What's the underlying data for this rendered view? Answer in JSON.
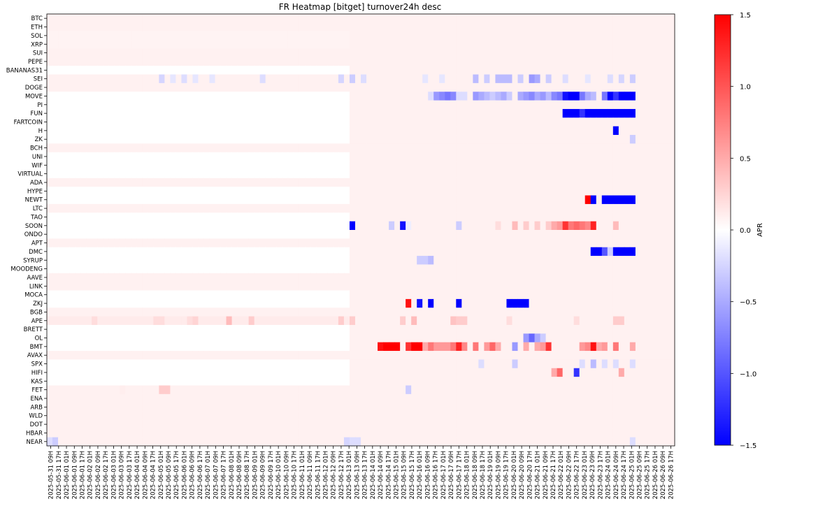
{
  "chart_data": {
    "type": "heatmap",
    "title": "FR Heatmap [bitget] turnover24h desc",
    "xlabel": "",
    "ylabel": "",
    "colorbar": {
      "label": "APR",
      "cmap": "bwr",
      "vmin": -1.5,
      "vmax": 1.5,
      "ticks": [
        1.5,
        1.0,
        0.5,
        0.0,
        -0.5,
        -1.0,
        -1.5
      ],
      "tick_labels": [
        "1.5",
        "1.0",
        "0.5",
        "0.0",
        "−0.5",
        "−1.0",
        "−1.5"
      ]
    },
    "y_categories": [
      "BTC",
      "ETH",
      "SOL",
      "XRP",
      "SUI",
      "PEPE",
      "BANANAS31",
      "SEI",
      "DOGE",
      "MOVE",
      "PI",
      "FUN",
      "FARTCOIN",
      "H",
      "ZK",
      "BCH",
      "UNI",
      "WIF",
      "VIRTUAL",
      "ADA",
      "HYPE",
      "NEWT",
      "LTC",
      "TAO",
      "SOON",
      "ONDO",
      "APT",
      "DMC",
      "SYRUP",
      "MOODENG",
      "AAVE",
      "LINK",
      "MOCA",
      "ZKJ",
      "BGB",
      "APE",
      "BRETT",
      "OL",
      "BMT",
      "AVAX",
      "SPX",
      "HIFI",
      "KAS",
      "FET",
      "ENA",
      "ARB",
      "WLD",
      "DOT",
      "HBAR",
      "NEAR"
    ],
    "x_categories": [
      "2025-05-31 09H",
      "2025-05-31 17H",
      "2025-06-01 01H",
      "2025-06-01 09H",
      "2025-06-01 17H",
      "2025-06-02 01H",
      "2025-06-02 09H",
      "2025-06-02 17H",
      "2025-06-03 01H",
      "2025-06-03 09H",
      "2025-06-03 17H",
      "2025-06-04 01H",
      "2025-06-04 09H",
      "2025-06-04 17H",
      "2025-06-05 01H",
      "2025-06-05 09H",
      "2025-06-05 17H",
      "2025-06-06 01H",
      "2025-06-06 09H",
      "2025-06-06 17H",
      "2025-06-07 01H",
      "2025-06-07 09H",
      "2025-06-07 17H",
      "2025-06-08 01H",
      "2025-06-08 09H",
      "2025-06-08 17H",
      "2025-06-09 01H",
      "2025-06-09 09H",
      "2025-06-09 17H",
      "2025-06-10 01H",
      "2025-06-10 09H",
      "2025-06-10 17H",
      "2025-06-11 01H",
      "2025-06-11 09H",
      "2025-06-11 17H",
      "2025-06-12 01H",
      "2025-06-12 09H",
      "2025-06-12 17H",
      "2025-06-13 01H",
      "2025-06-13 09H",
      "2025-06-13 17H",
      "2025-06-14 01H",
      "2025-06-14 09H",
      "2025-06-14 17H",
      "2025-06-15 01H",
      "2025-06-15 09H",
      "2025-06-15 17H",
      "2025-06-16 01H",
      "2025-06-16 09H",
      "2025-06-16 17H",
      "2025-06-17 01H",
      "2025-06-17 09H",
      "2025-06-17 17H",
      "2025-06-18 01H",
      "2025-06-18 09H",
      "2025-06-18 17H",
      "2025-06-19 01H",
      "2025-06-19 09H",
      "2025-06-19 17H",
      "2025-06-20 01H",
      "2025-06-20 09H",
      "2025-06-20 17H",
      "2025-06-21 01H",
      "2025-06-21 09H",
      "2025-06-21 17H",
      "2025-06-22 01H",
      "2025-06-22 09H",
      "2025-06-22 17H",
      "2025-06-23 01H",
      "2025-06-23 09H",
      "2025-06-23 17H",
      "2025-06-24 01H",
      "2025-06-24 09H",
      "2025-06-24 17H",
      "2025-06-25 01H",
      "2025-06-25 09H",
      "2025-06-25 17H",
      "2025-06-26 01H",
      "2025-06-26 09H",
      "2025-06-26 17H"
    ],
    "n_columns": 112,
    "base_values": {
      "BTC": 0.08,
      "ETH": 0.08,
      "SOL": 0.07,
      "XRP": 0.07,
      "SUI": 0.08,
      "PEPE": 0.08,
      "BANANAS31": 0.0,
      "SEI": 0.08,
      "DOGE": 0.08,
      "MOVE": 0.0,
      "PI": 0.0,
      "FUN": 0.0,
      "FARTCOIN": 0.0,
      "H": 0.0,
      "ZK": 0.0,
      "BCH": 0.08,
      "UNI": 0.0,
      "WIF": 0.0,
      "VIRTUAL": 0.0,
      "ADA": 0.08,
      "HYPE": 0.0,
      "NEWT": 0.0,
      "LTC": 0.08,
      "TAO": 0.0,
      "SOON": 0.0,
      "ONDO": 0.0,
      "APT": 0.08,
      "DMC": 0.0,
      "SYRUP": 0.0,
      "MOODENG": 0.0,
      "AAVE": 0.08,
      "LINK": 0.08,
      "MOCA": 0.0,
      "ZKJ": 0.0,
      "BGB": 0.08,
      "APE": 0.12,
      "BRETT": 0.0,
      "OL": 0.0,
      "BMT": 0.0,
      "AVAX": 0.08,
      "SPX": 0.0,
      "HIFI": 0.0,
      "KAS": 0.0,
      "FET": 0.08,
      "ENA": 0.08,
      "ARB": 0.08,
      "WLD": 0.08,
      "DOT": 0.08,
      "HBAR": 0.08,
      "NEAR": 0.08
    },
    "late_base_value": 0.08,
    "late_start_column": 54,
    "cells": [
      [
        "SEI",
        20,
        -0.25
      ],
      [
        "SEI",
        22,
        -0.15
      ],
      [
        "SEI",
        24,
        -0.2
      ],
      [
        "SEI",
        26,
        -0.15
      ],
      [
        "SEI",
        29,
        -0.15
      ],
      [
        "SEI",
        38,
        -0.2
      ],
      [
        "SEI",
        52,
        -0.25
      ],
      [
        "SEI",
        54,
        -0.3
      ],
      [
        "SEI",
        56,
        -0.2
      ],
      [
        "SEI",
        67,
        -0.15
      ],
      [
        "SEI",
        70,
        -0.15
      ],
      [
        "SEI",
        76,
        -0.4
      ],
      [
        "SEI",
        78,
        -0.3
      ],
      [
        "SEI",
        80,
        -0.4
      ],
      [
        "SEI",
        81,
        -0.4
      ],
      [
        "SEI",
        82,
        -0.4
      ],
      [
        "SEI",
        84,
        -0.3
      ],
      [
        "SEI",
        86,
        -0.6
      ],
      [
        "SEI",
        87,
        -0.5
      ],
      [
        "SEI",
        89,
        -0.3
      ],
      [
        "SEI",
        92,
        -0.2
      ],
      [
        "SEI",
        96,
        -0.15
      ],
      [
        "SEI",
        100,
        -0.2
      ],
      [
        "SEI",
        102,
        -0.25
      ],
      [
        "SEI",
        104,
        -0.3
      ],
      [
        "MOVE",
        68,
        -0.2
      ],
      [
        "MOVE",
        69,
        -0.6
      ],
      [
        "MOVE",
        70,
        -0.7
      ],
      [
        "MOVE",
        71,
        -0.8
      ],
      [
        "MOVE",
        72,
        -0.7
      ],
      [
        "MOVE",
        73,
        -0.2
      ],
      [
        "MOVE",
        74,
        -0.2
      ],
      [
        "MOVE",
        76,
        -0.6
      ],
      [
        "MOVE",
        77,
        -0.5
      ],
      [
        "MOVE",
        78,
        -0.4
      ],
      [
        "MOVE",
        79,
        -0.3
      ],
      [
        "MOVE",
        80,
        -0.4
      ],
      [
        "MOVE",
        81,
        -0.5
      ],
      [
        "MOVE",
        82,
        -0.3
      ],
      [
        "MOVE",
        84,
        -0.5
      ],
      [
        "MOVE",
        85,
        -0.6
      ],
      [
        "MOVE",
        86,
        -0.7
      ],
      [
        "MOVE",
        87,
        -0.5
      ],
      [
        "MOVE",
        88,
        -0.6
      ],
      [
        "MOVE",
        89,
        -0.4
      ],
      [
        "MOVE",
        90,
        -0.7
      ],
      [
        "MOVE",
        91,
        -0.8
      ],
      [
        "MOVE",
        92,
        -1.4
      ],
      [
        "MOVE",
        93,
        -1.5
      ],
      [
        "MOVE",
        94,
        -1.5
      ],
      [
        "MOVE",
        95,
        -0.8
      ],
      [
        "MOVE",
        96,
        -0.5
      ],
      [
        "MOVE",
        97,
        -0.4
      ],
      [
        "MOVE",
        99,
        -0.8
      ],
      [
        "MOVE",
        100,
        -1.5
      ],
      [
        "MOVE",
        101,
        -1.2
      ],
      [
        "MOVE",
        102,
        -1.5
      ],
      [
        "MOVE",
        103,
        -1.5
      ],
      [
        "MOVE",
        104,
        -1.5
      ],
      [
        "FUN",
        92,
        -1.5
      ],
      [
        "FUN",
        93,
        -1.5
      ],
      [
        "FUN",
        94,
        -1.5
      ],
      [
        "FUN",
        95,
        -1.2
      ],
      [
        "FUN",
        96,
        -1.5
      ],
      [
        "FUN",
        97,
        -1.5
      ],
      [
        "FUN",
        98,
        -1.5
      ],
      [
        "FUN",
        99,
        -1.5
      ],
      [
        "FUN",
        100,
        -1.5
      ],
      [
        "FUN",
        101,
        -1.5
      ],
      [
        "FUN",
        102,
        -1.5
      ],
      [
        "FUN",
        103,
        -1.5
      ],
      [
        "FUN",
        104,
        -1.5
      ],
      [
        "H",
        101,
        -1.5
      ],
      [
        "ZK",
        104,
        -0.3
      ],
      [
        "NEWT",
        96,
        1.5
      ],
      [
        "NEWT",
        97,
        -1.5
      ],
      [
        "NEWT",
        98,
        0.1
      ],
      [
        "NEWT",
        99,
        -1.5
      ],
      [
        "NEWT",
        100,
        -1.5
      ],
      [
        "NEWT",
        101,
        -1.5
      ],
      [
        "NEWT",
        102,
        -1.5
      ],
      [
        "NEWT",
        103,
        -1.5
      ],
      [
        "NEWT",
        104,
        -1.5
      ],
      [
        "SOON",
        54,
        -1.5
      ],
      [
        "SOON",
        61,
        -0.3
      ],
      [
        "SOON",
        63,
        -1.4
      ],
      [
        "SOON",
        64,
        -0.1
      ],
      [
        "SOON",
        73,
        -0.3
      ],
      [
        "SOON",
        80,
        0.2
      ],
      [
        "SOON",
        83,
        0.4
      ],
      [
        "SOON",
        85,
        0.3
      ],
      [
        "SOON",
        87,
        0.3
      ],
      [
        "SOON",
        89,
        0.3
      ],
      [
        "SOON",
        90,
        0.5
      ],
      [
        "SOON",
        91,
        0.6
      ],
      [
        "SOON",
        92,
        1.2
      ],
      [
        "SOON",
        93,
        0.8
      ],
      [
        "SOON",
        94,
        0.9
      ],
      [
        "SOON",
        95,
        0.8
      ],
      [
        "SOON",
        96,
        0.7
      ],
      [
        "SOON",
        97,
        1.3
      ],
      [
        "SOON",
        101,
        0.4
      ],
      [
        "DMC",
        97,
        -1.5
      ],
      [
        "DMC",
        98,
        -1.5
      ],
      [
        "DMC",
        99,
        -1.0
      ],
      [
        "DMC",
        100,
        -0.3
      ],
      [
        "DMC",
        101,
        -1.5
      ],
      [
        "DMC",
        102,
        -1.5
      ],
      [
        "DMC",
        103,
        -1.5
      ],
      [
        "DMC",
        104,
        -1.5
      ],
      [
        "SYRUP",
        66,
        -0.3
      ],
      [
        "SYRUP",
        67,
        -0.3
      ],
      [
        "SYRUP",
        68,
        -0.4
      ],
      [
        "ZKJ",
        64,
        1.4
      ],
      [
        "ZKJ",
        66,
        -1.4
      ],
      [
        "ZKJ",
        68,
        -1.5
      ],
      [
        "ZKJ",
        73,
        -1.5
      ],
      [
        "ZKJ",
        82,
        -1.5
      ],
      [
        "ZKJ",
        83,
        -1.5
      ],
      [
        "ZKJ",
        84,
        -1.5
      ],
      [
        "ZKJ",
        85,
        -1.5
      ],
      [
        "APE",
        8,
        0.2
      ],
      [
        "APE",
        19,
        0.2
      ],
      [
        "APE",
        20,
        0.2
      ],
      [
        "APE",
        25,
        0.2
      ],
      [
        "APE",
        26,
        0.25
      ],
      [
        "APE",
        32,
        0.4
      ],
      [
        "APE",
        36,
        0.3
      ],
      [
        "APE",
        52,
        0.3
      ],
      [
        "APE",
        54,
        0.3
      ],
      [
        "APE",
        63,
        0.3
      ],
      [
        "APE",
        65,
        0.4
      ],
      [
        "APE",
        72,
        0.35
      ],
      [
        "APE",
        73,
        0.3
      ],
      [
        "APE",
        74,
        0.3
      ],
      [
        "APE",
        82,
        0.2
      ],
      [
        "APE",
        94,
        0.2
      ],
      [
        "APE",
        101,
        0.3
      ],
      [
        "APE",
        102,
        0.3
      ],
      [
        "OL",
        85,
        -0.6
      ],
      [
        "OL",
        86,
        -0.9
      ],
      [
        "OL",
        87,
        -0.5
      ],
      [
        "OL",
        88,
        -0.3
      ],
      [
        "BMT",
        59,
        1.4
      ],
      [
        "BMT",
        60,
        1.5
      ],
      [
        "BMT",
        61,
        1.5
      ],
      [
        "BMT",
        62,
        1.5
      ],
      [
        "BMT",
        64,
        1.2
      ],
      [
        "BMT",
        65,
        1.5
      ],
      [
        "BMT",
        66,
        1.5
      ],
      [
        "BMT",
        67,
        0.5
      ],
      [
        "BMT",
        68,
        0.8
      ],
      [
        "BMT",
        69,
        0.6
      ],
      [
        "BMT",
        70,
        0.6
      ],
      [
        "BMT",
        71,
        0.6
      ],
      [
        "BMT",
        72,
        0.8
      ],
      [
        "BMT",
        73,
        1.3
      ],
      [
        "BMT",
        74,
        0.7
      ],
      [
        "BMT",
        76,
        0.8
      ],
      [
        "BMT",
        78,
        0.6
      ],
      [
        "BMT",
        79,
        0.9
      ],
      [
        "BMT",
        80,
        0.5
      ],
      [
        "BMT",
        83,
        -0.6
      ],
      [
        "BMT",
        85,
        0.5
      ],
      [
        "BMT",
        87,
        0.5
      ],
      [
        "BMT",
        88,
        0.6
      ],
      [
        "BMT",
        89,
        1.2
      ],
      [
        "BMT",
        95,
        0.6
      ],
      [
        "BMT",
        96,
        0.7
      ],
      [
        "BMT",
        97,
        1.4
      ],
      [
        "BMT",
        98,
        0.5
      ],
      [
        "BMT",
        99,
        0.6
      ],
      [
        "BMT",
        101,
        0.8
      ],
      [
        "BMT",
        104,
        0.5
      ],
      [
        "SPX",
        77,
        -0.2
      ],
      [
        "SPX",
        83,
        -0.3
      ],
      [
        "SPX",
        95,
        -0.2
      ],
      [
        "SPX",
        97,
        -0.4
      ],
      [
        "SPX",
        99,
        -0.2
      ],
      [
        "SPX",
        101,
        -0.2
      ],
      [
        "SPX",
        104,
        -0.2
      ],
      [
        "HIFI",
        90,
        0.5
      ],
      [
        "HIFI",
        91,
        0.9
      ],
      [
        "HIFI",
        94,
        -1.2
      ],
      [
        "HIFI",
        102,
        0.5
      ],
      [
        "FET",
        13,
        0.1
      ],
      [
        "FET",
        20,
        0.3
      ],
      [
        "FET",
        21,
        0.3
      ],
      [
        "FET",
        64,
        -0.3
      ],
      [
        "NEAR",
        0,
        -0.2
      ],
      [
        "NEAR",
        1,
        -0.3
      ],
      [
        "NEAR",
        53,
        -0.25
      ],
      [
        "NEAR",
        54,
        -0.2
      ],
      [
        "NEAR",
        55,
        -0.2
      ],
      [
        "NEAR",
        104,
        -0.2
      ]
    ]
  }
}
